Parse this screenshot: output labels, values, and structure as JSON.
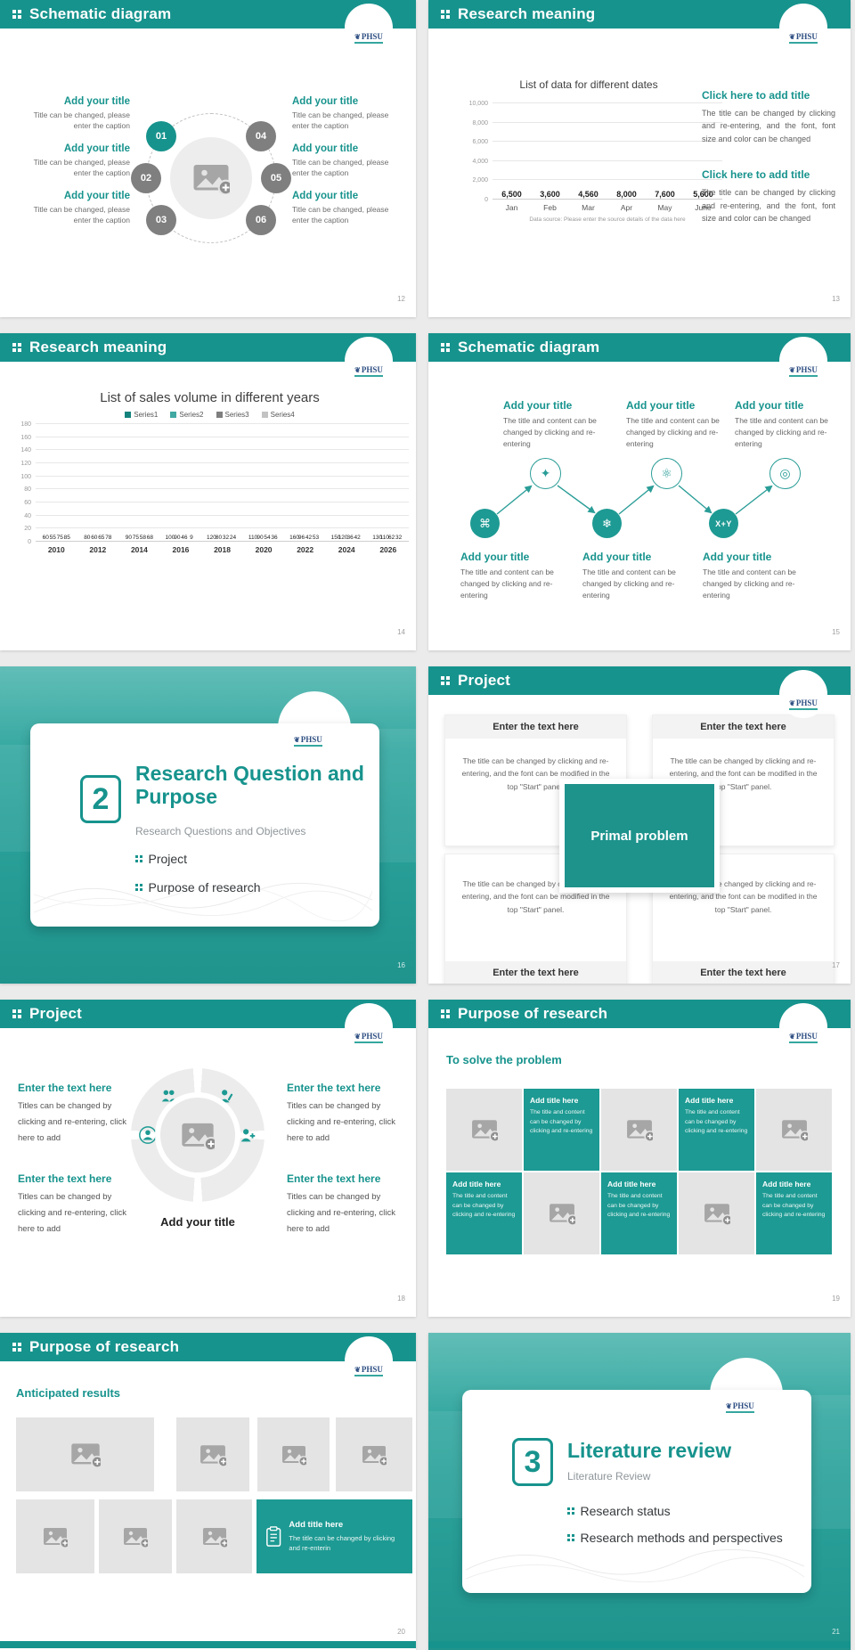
{
  "theme": {
    "accent": "#17938d",
    "header_bg": "#17938d",
    "section_bg": "#2ba29b",
    "gray_node": "#7f7f7f",
    "tile_teal": "#1d9a93",
    "placeholder_bg": "#e4e4e4",
    "page_bg": "#ebebeb"
  },
  "logo": {
    "text": "PHSU"
  },
  "chart_data": [
    {
      "type": "bar",
      "title": "List of data for different dates",
      "categories": [
        "Jan",
        "Feb",
        "Mar",
        "Apr",
        "May",
        "June"
      ],
      "series": [
        {
          "name": "Data",
          "color": "#1f9e98",
          "values": [
            6500,
            3600,
            4560,
            8000,
            7600,
            5600
          ]
        }
      ],
      "data_labels": [
        "6,500",
        "3,600",
        "4,560",
        "8,000",
        "7,600",
        "5,600"
      ],
      "ylim": [
        0,
        10000
      ],
      "ytick_labels": [
        "0",
        "2,000",
        "4,000",
        "6,000",
        "8,000",
        "10,000"
      ],
      "caption": "Data source: Please enter the source details of the data here",
      "legend": false,
      "grid": true,
      "legend_position": "none"
    },
    {
      "type": "bar",
      "title": "List of sales volume in different years",
      "categories": [
        "2010",
        "2012",
        "2014",
        "2016",
        "2018",
        "2020",
        "2022",
        "2024",
        "2026"
      ],
      "series": [
        {
          "name": "Series1",
          "color": "#15837d",
          "values": [
            60,
            80,
            90,
            100,
            120,
            110,
            160,
            150,
            130
          ]
        },
        {
          "name": "Series2",
          "color": "#41a8a2",
          "values": [
            55,
            60,
            75,
            90,
            80,
            90,
            96,
            120,
            110
          ]
        },
        {
          "name": "Series3",
          "color": "#7f7f7f",
          "values": [
            75,
            65,
            58,
            46,
            32,
            54,
            42,
            36,
            62
          ]
        },
        {
          "name": "Series4",
          "color": "#c3c3c3",
          "values": [
            85,
            78,
            68,
            9,
            24,
            36,
            53,
            42,
            32
          ]
        }
      ],
      "ylim": [
        0,
        180
      ],
      "ytick_labels": [
        "0",
        "20",
        "40",
        "60",
        "80",
        "100",
        "120",
        "140",
        "160",
        "180"
      ],
      "legend": true,
      "grid": true,
      "legend_position": "top"
    }
  ],
  "slides": {
    "s12": {
      "header": "Schematic diagram",
      "page": "12",
      "badges": [
        "01",
        "02",
        "03",
        "04",
        "05",
        "06"
      ],
      "block_title": "Add your title",
      "block_caption": "Title can be changed, please enter the caption"
    },
    "s13": {
      "header": "Research meaning",
      "page": "13",
      "item_title": "Click here to add title",
      "item_body": "The title can be changed by clicking and re-entering, and the font, font size and color can be changed"
    },
    "s14": {
      "header": "Research meaning",
      "page": "14"
    },
    "s15": {
      "header": "Schematic diagram",
      "page": "15",
      "block_title": "Add your title",
      "block_body": "The title and content can be changed by clicking and re-entering",
      "node3_label": "X+Y"
    },
    "s16": {
      "page": "16",
      "number": "2",
      "title": "Research Question and Purpose",
      "subtitle": "Research Questions and Objectives",
      "bullets": [
        "Project",
        "Purpose of research"
      ]
    },
    "s17": {
      "header": "Project",
      "page": "17",
      "box_title": "Enter the text here",
      "box_body": "The title can be changed by clicking and re-entering, and the font can be modified in the top \"Start\" panel.",
      "center": "Primal problem"
    },
    "s18": {
      "header": "Project",
      "page": "18",
      "block_title": "Enter the text here",
      "block_body": "Titles can be changed by clicking and re-entering, click here to add",
      "center_caption": "Add your title"
    },
    "s19": {
      "header": "Purpose of research",
      "page": "19",
      "heading": "To solve the problem",
      "tile_title": "Add title here",
      "tile_body": "The title and content can be changed by clicking and re-entering"
    },
    "s20": {
      "header": "Purpose of research",
      "page": "20",
      "heading": "Anticipated results",
      "tile_title": "Add title here",
      "tile_body": "The title can be changed by clicking and re-enterin"
    },
    "s21": {
      "page": "21",
      "number": "3",
      "title": "Literature review",
      "subtitle": "Literature Review",
      "bullets": [
        "Research status",
        "Research methods and perspectives"
      ]
    }
  }
}
